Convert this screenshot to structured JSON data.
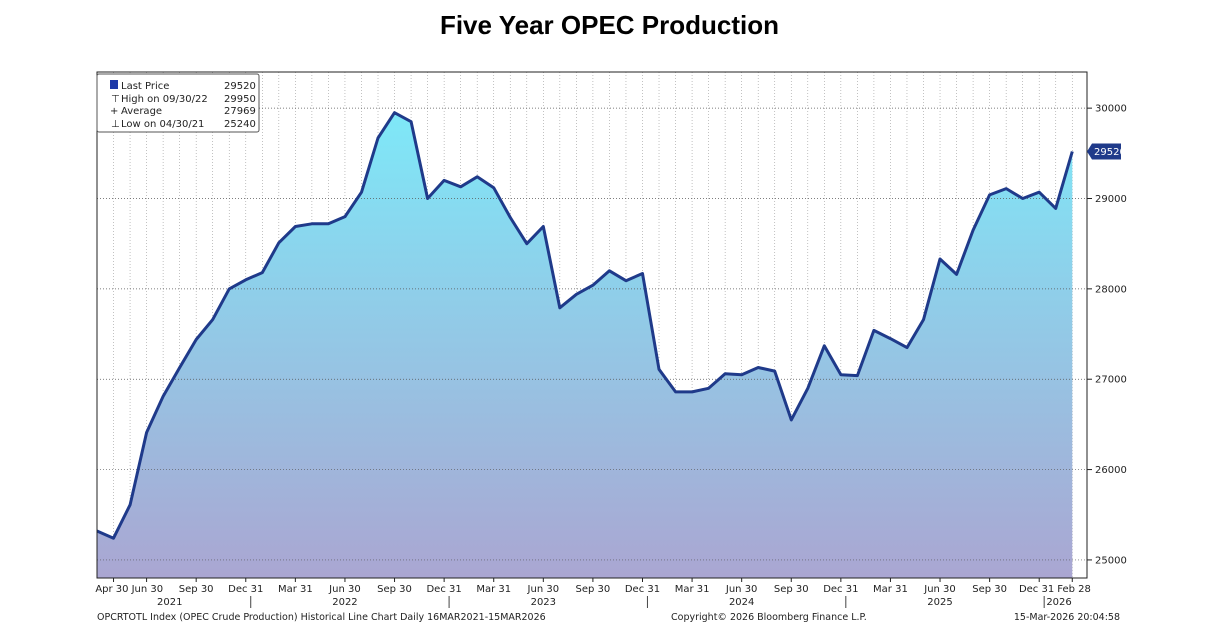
{
  "title": "Five Year OPEC Production",
  "legend": {
    "rows": [
      {
        "label": "Last Price",
        "value": "29520"
      },
      {
        "label": "High on 09/30/22",
        "value": "29950"
      },
      {
        "label": "Average",
        "value": "27969"
      },
      {
        "label": "Low on 04/30/21",
        "value": "25240"
      }
    ]
  },
  "footer": {
    "left": "OPCRTOTL Index (OPEC Crude Production) Historical Line Chart Daily 16MAR2021-15MAR2026",
    "center": "Copyright© 2026 Bloomberg Finance L.P.",
    "right": "15-Mar-2026 20:04:58"
  },
  "colors": {
    "line": "#1f3a8a",
    "fill_top": "#7ee8f8",
    "fill_bottom": "#aaa6d2",
    "badge": "#1f3a8a"
  },
  "chart_data": {
    "type": "area",
    "title": "Five Year OPEC Production",
    "xlabel": "",
    "ylabel": "",
    "ylim": [
      24800,
      30400
    ],
    "yticks": [
      25000,
      26000,
      27000,
      28000,
      29000,
      30000
    ],
    "last_value_label": "29520",
    "x_start": "2021-03",
    "x_ticks": [
      {
        "i": 1,
        "label": "Apr 30"
      },
      {
        "i": 3,
        "label": "Jun 30"
      },
      {
        "i": 6,
        "label": "Sep 30"
      },
      {
        "i": 9,
        "label": "Dec 31"
      },
      {
        "i": 12,
        "label": "Mar 31"
      },
      {
        "i": 15,
        "label": "Jun 30"
      },
      {
        "i": 18,
        "label": "Sep 30"
      },
      {
        "i": 21,
        "label": "Dec 31"
      },
      {
        "i": 24,
        "label": "Mar 31"
      },
      {
        "i": 27,
        "label": "Jun 30"
      },
      {
        "i": 30,
        "label": "Sep 30"
      },
      {
        "i": 33,
        "label": "Dec 31"
      },
      {
        "i": 36,
        "label": "Mar 31"
      },
      {
        "i": 39,
        "label": "Jun 30"
      },
      {
        "i": 42,
        "label": "Sep 30"
      },
      {
        "i": 45,
        "label": "Dec 31"
      },
      {
        "i": 48,
        "label": "Mar 31"
      },
      {
        "i": 51,
        "label": "Jun 30"
      },
      {
        "i": 54,
        "label": "Sep 30"
      },
      {
        "i": 57,
        "label": "Dec 31"
      },
      {
        "i": 59,
        "label": "Feb 28"
      }
    ],
    "years": [
      {
        "i": 4.4,
        "label": "2021"
      },
      {
        "i": 15,
        "label": "2022"
      },
      {
        "i": 27,
        "label": "2023"
      },
      {
        "i": 39,
        "label": "2024"
      },
      {
        "i": 51,
        "label": "2025"
      },
      {
        "i": 58.2,
        "label": "2026"
      }
    ],
    "year_separators": [
      9.3,
      21.3,
      33.3,
      45.3,
      57.3
    ],
    "values": [
      25320,
      25240,
      25610,
      26410,
      26810,
      27130,
      27440,
      27660,
      28000,
      28100,
      28180,
      28510,
      28690,
      28720,
      28720,
      28800,
      29070,
      29670,
      29950,
      29850,
      29000,
      29200,
      29130,
      29240,
      29120,
      28790,
      28500,
      28690,
      27790,
      27940,
      28040,
      28200,
      28090,
      28170,
      27110,
      26860,
      26860,
      26900,
      27060,
      27050,
      27130,
      27090,
      26550,
      26900,
      27370,
      27050,
      27040,
      27540,
      27450,
      27350,
      27660,
      28330,
      28160,
      28650,
      29040,
      29110,
      29000,
      29070,
      28890,
      29520
    ]
  }
}
